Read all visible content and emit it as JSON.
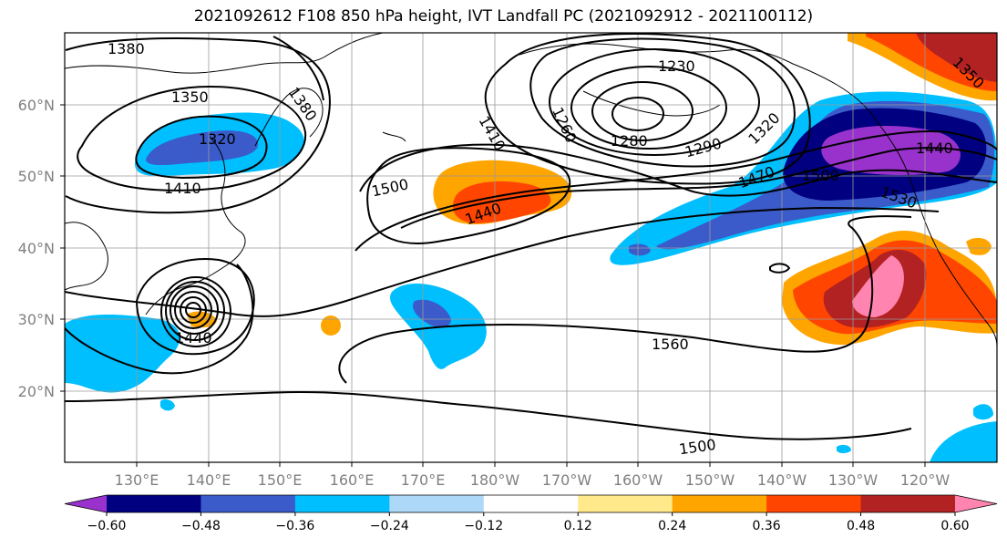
{
  "title": "2021092612 F108 850 hPa height, IVT Landfall PC (2021092912 - 2021100112)",
  "lat_labels": [
    "60°N",
    "50°N",
    "40°N",
    "30°N",
    "20°N"
  ],
  "lon_labels": [
    "130°E",
    "140°E",
    "150°E",
    "160°E",
    "170°E",
    "180°W",
    "170°W",
    "160°W",
    "150°W",
    "140°W",
    "130°W",
    "120°W"
  ],
  "contour_labels": [
    "1380",
    "1350",
    "1320",
    "1410",
    "1380",
    "1410",
    "1260",
    "1230",
    "1280",
    "1290",
    "1320",
    "1500",
    "1440",
    "1470",
    "1500",
    "1530",
    "1440",
    "1350",
    "1440",
    "1560",
    "1500"
  ],
  "colorbar": {
    "colors": [
      "#9932cc",
      "#000080",
      "#3a5bc9",
      "#00bfff",
      "#add8f7",
      "#ffffff",
      "#ffe98a",
      "#ffa500",
      "#ff4500",
      "#b22222",
      "#ff85b0"
    ],
    "tick_labels": [
      "−0.60",
      "−0.48",
      "−0.36",
      "−0.24",
      "−0.12",
      "0.12",
      "0.24",
      "0.36",
      "0.48",
      "0.60"
    ]
  }
}
